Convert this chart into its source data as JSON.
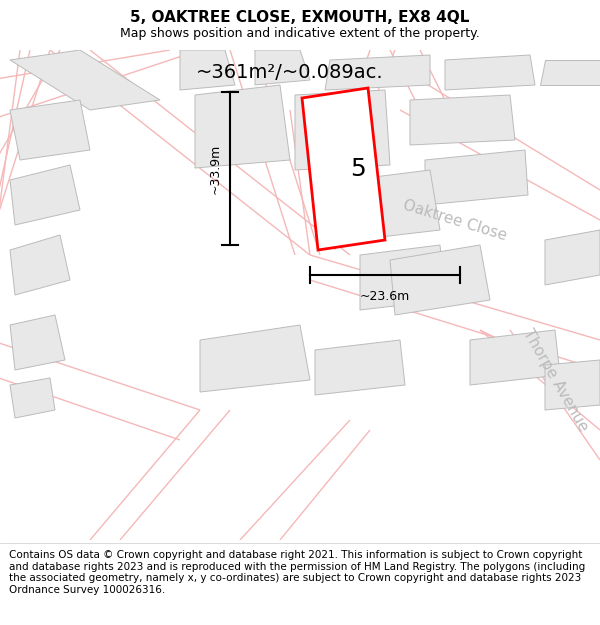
{
  "title": "5, OAKTREE CLOSE, EXMOUTH, EX8 4QL",
  "subtitle": "Map shows position and indicative extent of the property.",
  "area_label": "~361m²/~0.089ac.",
  "property_number": "5",
  "dim_width": "~23.6m",
  "dim_height": "~33.9m",
  "road1": "Oaktree Close",
  "road2": "Thorpe Avenue",
  "footer": "Contains OS data © Crown copyright and database right 2021. This information is subject to Crown copyright and database rights 2023 and is reproduced with the permission of HM Land Registry. The polygons (including the associated geometry, namely x, y co-ordinates) are subject to Crown copyright and database rights 2023 Ordnance Survey 100026316.",
  "map_bg": "#ffffff",
  "plot_bg": "#ffffff",
  "building_color": "#e8e8e8",
  "building_edge": "#bbbbbb",
  "road_color": "#f5b8b8",
  "highlight_color": "#ff0000",
  "dim_color": "#000000",
  "road_label_color": "#bbbbbb",
  "title_fontsize": 11,
  "subtitle_fontsize": 9,
  "area_fontsize": 14,
  "road_label_fontsize": 11,
  "prop_num_fontsize": 18,
  "footer_fontsize": 7.5
}
